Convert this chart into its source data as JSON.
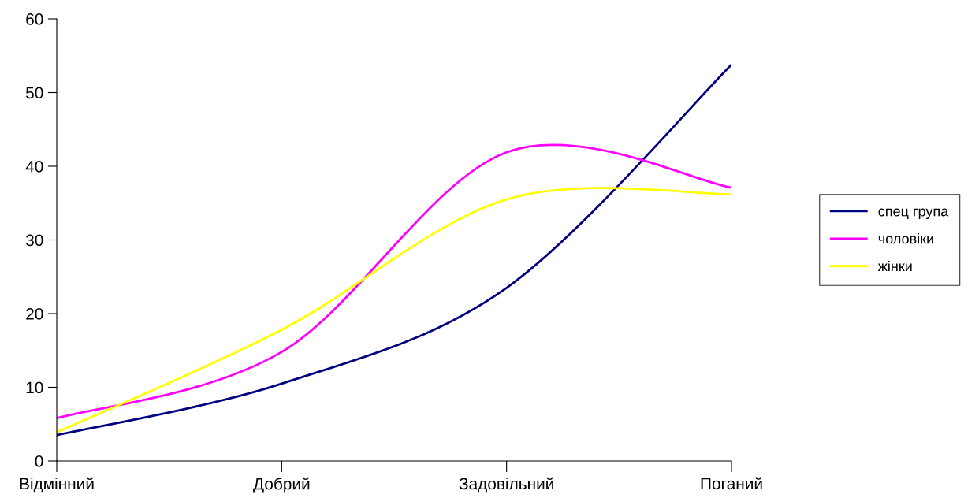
{
  "chart_data": {
    "type": "line",
    "categories": [
      "Відмінний",
      "Добрий",
      "Задовільний",
      "Поганий"
    ],
    "series": [
      {
        "name": "спец група",
        "color": "#000080",
        "values": [
          3.5,
          10.5,
          23.5,
          53.8
        ]
      },
      {
        "name": "чоловіки",
        "color": "#ff00ff",
        "values": [
          5.8,
          14.8,
          41.9,
          37.1
        ]
      },
      {
        "name": "жінки",
        "color": "#ffff00",
        "values": [
          3.9,
          17.8,
          35.5,
          36.2
        ]
      }
    ],
    "ylim": [
      0,
      60
    ],
    "yticks": [
      0,
      10,
      20,
      30,
      40,
      50,
      60
    ],
    "grid": false,
    "legend": "right",
    "marker": "none",
    "line_style": "solid"
  }
}
